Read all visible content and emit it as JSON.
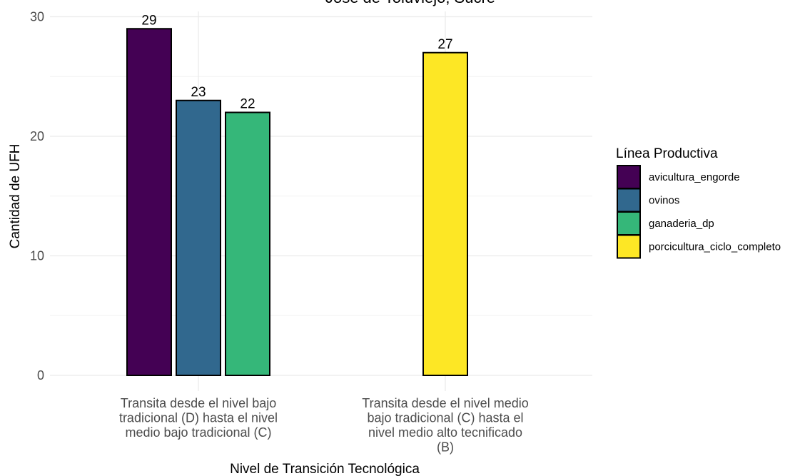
{
  "chart_data": {
    "type": "bar",
    "title": "Jose de Tolúviejo, Sucre",
    "xlabel": "Nivel de Transición Tecnológica",
    "ylabel": "Cantidad de UFH",
    "ylim": [
      0,
      30
    ],
    "yticks": [
      0,
      10,
      20,
      30
    ],
    "grid": true,
    "legend_title": "Línea Productiva",
    "legend_position": "right",
    "categories": [
      "Transita desde el nivel bajo tradicional (D) hasta el nivel medio bajo tradicional (C)",
      "Transita desde el nivel medio bajo tradicional (C) hasta el nivel medio alto tecnificado (B)"
    ],
    "category_lines": [
      [
        "Transita desde el nivel bajo",
        "tradicional (D) hasta el nivel",
        "medio bajo tradicional (C)"
      ],
      [
        "Transita desde el nivel medio",
        "bajo tradicional (C) hasta el",
        "nivel medio alto tecnificado",
        "(B)"
      ]
    ],
    "series": [
      {
        "name": "avicultura_engorde",
        "color": "#440154",
        "values": [
          29,
          null
        ]
      },
      {
        "name": "ovinos",
        "color": "#31688E",
        "values": [
          23,
          null
        ]
      },
      {
        "name": "ganaderia_dp",
        "color": "#35B779",
        "values": [
          22,
          null
        ]
      },
      {
        "name": "porcicultura_ciclo_completo",
        "color": "#FDE725",
        "values": [
          null,
          27
        ]
      }
    ]
  }
}
